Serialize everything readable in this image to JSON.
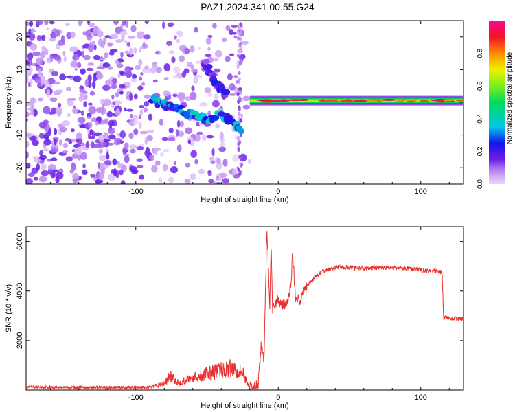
{
  "figure": {
    "title": "PAZ1.2024.341.00.55.G24"
  },
  "chart_data": [
    {
      "type": "heatmap",
      "xlabel": "Height of straight line (km)",
      "ylabel": "Frequency (Hz)",
      "xlim": [
        -177,
        130
      ],
      "ylim": [
        -25,
        25
      ],
      "x_ticks": [
        -100,
        0,
        100
      ],
      "x_tick_labels": [
        "-100",
        "0",
        "100"
      ],
      "y_ticks": [
        -20,
        -10,
        0,
        10,
        20
      ],
      "y_tick_labels": [
        "-20",
        "-10",
        "0",
        "10",
        "20"
      ],
      "colorbar": {
        "label": "Normalized spectral amplitude",
        "range": [
          0,
          1
        ],
        "ticks": [
          0.0,
          0.2,
          0.4,
          0.6,
          0.8
        ],
        "tick_labels": [
          "0.0",
          "0.2",
          "0.4",
          "0.6",
          "0.8"
        ],
        "colormap": "rainbow (white-violet-blue-cyan-green-yellow-red-magenta)"
      },
      "features": [
        {
          "name": "noisy low-amplitude region",
          "x_range": [
            -177,
            -20
          ],
          "y_range": [
            -25,
            25
          ],
          "amplitude": 0.08
        },
        {
          "name": "descending streak",
          "points": [
            [
              -88,
              1
            ],
            [
              -80,
              -1
            ],
            [
              -70,
              -2
            ],
            [
              -60,
              -4
            ],
            [
              -50,
              -5
            ],
            [
              -40,
              -4
            ],
            [
              -30,
              -7
            ],
            [
              -26,
              -8
            ]
          ],
          "amplitude": 0.35
        },
        {
          "name": "upper streak",
          "points": [
            [
              -52,
              12
            ],
            [
              -48,
              9
            ],
            [
              -44,
              6
            ],
            [
              -40,
              4
            ],
            [
              -36,
              2
            ]
          ],
          "amplitude": 0.22
        },
        {
          "name": "stable tone",
          "x_range": [
            -20,
            130
          ],
          "y_center": 0.5,
          "amplitude": 0.9
        }
      ]
    },
    {
      "type": "line",
      "xlabel": "Height of straight line (km)",
      "ylabel": "SNR (10 * v/v)",
      "xlim": [
        -177,
        130
      ],
      "ylim": [
        0,
        6600
      ],
      "x_ticks": [
        -100,
        0,
        100
      ],
      "x_tick_labels": [
        "-100",
        "0",
        "100"
      ],
      "y_ticks": [
        2000,
        4000,
        6000
      ],
      "y_tick_labels": [
        "2000",
        "4000",
        "6000"
      ],
      "line_color": "#e8312f",
      "series": [
        {
          "x": [
            -177,
            -150,
            -120,
            -90,
            -80,
            -76,
            -70,
            -60,
            -50,
            -40,
            -30,
            -25,
            -20,
            -17,
            -14,
            -12,
            -10,
            -8,
            -6,
            -5,
            -4,
            -2,
            0,
            3,
            6,
            9,
            10,
            12,
            15,
            20,
            25,
            30,
            35,
            40,
            50,
            60,
            70,
            80,
            90,
            100,
            110,
            115,
            116,
            118,
            120,
            125,
            130
          ],
          "y": [
            120,
            110,
            100,
            120,
            250,
            550,
            300,
            500,
            650,
            800,
            900,
            700,
            100,
            50,
            300,
            1800,
            1200,
            6600,
            3400,
            5800,
            3300,
            3500,
            3600,
            3500,
            3400,
            4300,
            5700,
            3700,
            3650,
            4200,
            4500,
            4750,
            4850,
            4950,
            4950,
            4900,
            4950,
            4950,
            4900,
            4850,
            4800,
            4750,
            2900,
            2950,
            2900,
            2880,
            2880
          ]
        }
      ]
    }
  ]
}
